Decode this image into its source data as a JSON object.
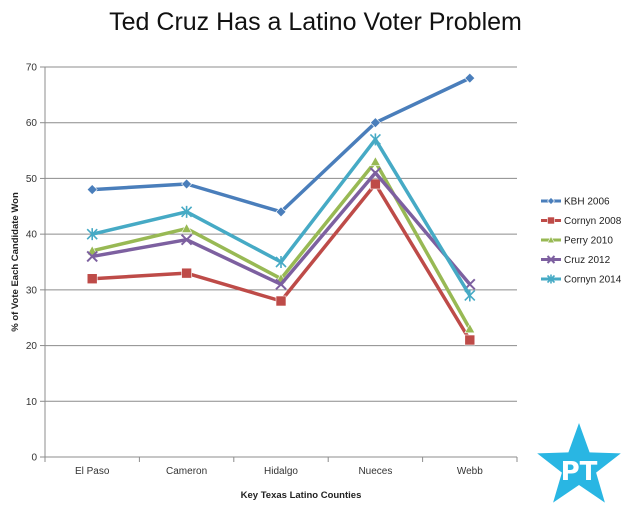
{
  "chart_data": {
    "type": "line",
    "title": "Ted Cruz Has a Latino Voter Problem",
    "xlabel": "Key Texas  Latino Counties",
    "ylabel": "% of Vote Each Candidate  Won",
    "categories": [
      "El Paso",
      "Cameron",
      "Hidalgo",
      "Nueces",
      "Webb"
    ],
    "ylim": [
      0,
      70
    ],
    "yticks": [
      0,
      10,
      20,
      30,
      40,
      50,
      60,
      70
    ],
    "grid": true,
    "legend_position": "right",
    "series": [
      {
        "name": "KBH 2006",
        "color": "#4a7ebb",
        "marker": "diamond",
        "values": [
          48,
          49,
          44,
          60,
          68
        ]
      },
      {
        "name": "Cornyn 2008",
        "color": "#be4b48",
        "marker": "square",
        "values": [
          32,
          33,
          28,
          49,
          21
        ]
      },
      {
        "name": "Perry 2010",
        "color": "#98b954",
        "marker": "triangle",
        "values": [
          37,
          41,
          32,
          53,
          23
        ]
      },
      {
        "name": "Cruz 2012",
        "color": "#7d60a0",
        "marker": "x",
        "values": [
          36,
          39,
          31,
          51,
          31
        ]
      },
      {
        "name": "Cornyn 2014",
        "color": "#46aac5",
        "marker": "star",
        "values": [
          40,
          44,
          35,
          57,
          29
        ]
      }
    ]
  },
  "logo": {
    "text": "PT",
    "color": "#29b6e3"
  }
}
